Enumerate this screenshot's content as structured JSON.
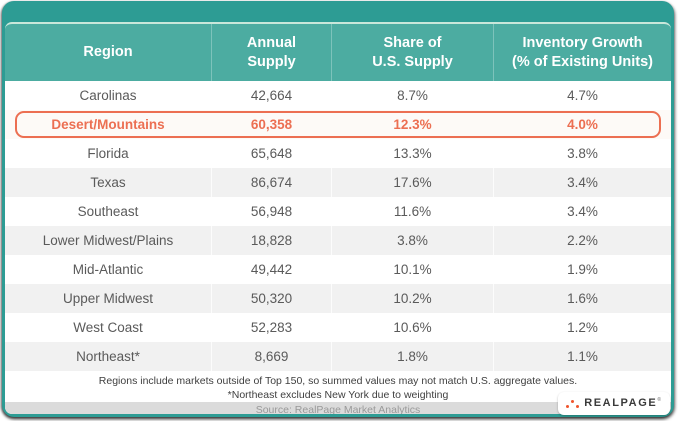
{
  "header": {
    "region": "Region",
    "annual": [
      "Annual",
      "Supply"
    ],
    "share": [
      "Share of",
      "U.S. Supply"
    ],
    "growth": [
      "Inventory Growth",
      "(% of Existing Units)"
    ]
  },
  "rows": [
    {
      "region": "Carolinas",
      "annual": "42,664",
      "share": "8.7%",
      "growth": "4.7%",
      "highlighted": false
    },
    {
      "region": "Desert/Mountains",
      "annual": "60,358",
      "share": "12.3%",
      "growth": "4.0%",
      "highlighted": true
    },
    {
      "region": "Florida",
      "annual": "65,648",
      "share": "13.3%",
      "growth": "3.8%",
      "highlighted": false
    },
    {
      "region": "Texas",
      "annual": "86,674",
      "share": "17.6%",
      "growth": "3.4%",
      "highlighted": false
    },
    {
      "region": "Southeast",
      "annual": "56,948",
      "share": "11.6%",
      "growth": "3.4%",
      "highlighted": false
    },
    {
      "region": "Lower Midwest/Plains",
      "annual": "18,828",
      "share": "3.8%",
      "growth": "2.2%",
      "highlighted": false
    },
    {
      "region": "Mid-Atlantic",
      "annual": "49,442",
      "share": "10.1%",
      "growth": "1.9%",
      "highlighted": false
    },
    {
      "region": "Upper Midwest",
      "annual": "50,320",
      "share": "10.2%",
      "growth": "1.6%",
      "highlighted": false
    },
    {
      "region": "West Coast",
      "annual": "52,283",
      "share": "10.6%",
      "growth": "1.2%",
      "highlighted": false
    },
    {
      "region": "Northeast*",
      "annual": "8,669",
      "share": "1.8%",
      "growth": "1.1%",
      "highlighted": false
    }
  ],
  "footnotes": [
    "Regions include markets outside of Top 150, so summed values may not match U.S. aggregate values.",
    "*Northeast excludes New York due to weighting"
  ],
  "source": "Source: RealPage Market Analytics",
  "logo": {
    "brand": "REALPAGE",
    "registered": "®"
  },
  "colors": {
    "teal_dark": "#2D9C94",
    "teal_header": "#4CACA1",
    "accent_line": "#C9E7DA",
    "highlight_orange": "#EC6F52",
    "logo_orange": "#F0542C",
    "row_stripe": "#F1F1F1",
    "row_text": "#5A5A5A",
    "source_bar": "#DBDBDB",
    "source_text": "#999999"
  },
  "chart_data": {
    "type": "table",
    "title": "",
    "columns": [
      "Region",
      "Annual Supply",
      "Share of U.S. Supply",
      "Inventory Growth (% of Existing Units)"
    ],
    "rows": [
      [
        "Carolinas",
        42664,
        "8.7%",
        "4.7%"
      ],
      [
        "Desert/Mountains",
        60358,
        "12.3%",
        "4.0%"
      ],
      [
        "Florida",
        65648,
        "13.3%",
        "3.8%"
      ],
      [
        "Texas",
        86674,
        "17.6%",
        "3.4%"
      ],
      [
        "Southeast",
        56948,
        "11.6%",
        "3.4%"
      ],
      [
        "Lower Midwest/Plains",
        18828,
        "3.8%",
        "2.2%"
      ],
      [
        "Mid-Atlantic",
        49442,
        "10.1%",
        "1.9%"
      ],
      [
        "Upper Midwest",
        50320,
        "10.2%",
        "1.6%"
      ],
      [
        "West Coast",
        52283,
        "10.6%",
        "1.2%"
      ],
      [
        "Northeast*",
        8669,
        "1.8%",
        "1.1%"
      ]
    ],
    "highlighted_row": "Desert/Mountains",
    "footnotes": [
      "Regions include markets outside of Top 150, so summed values may not match U.S. aggregate values.",
      "*Northeast excludes New York due to weighting"
    ],
    "source": "Source: RealPage Market Analytics"
  }
}
